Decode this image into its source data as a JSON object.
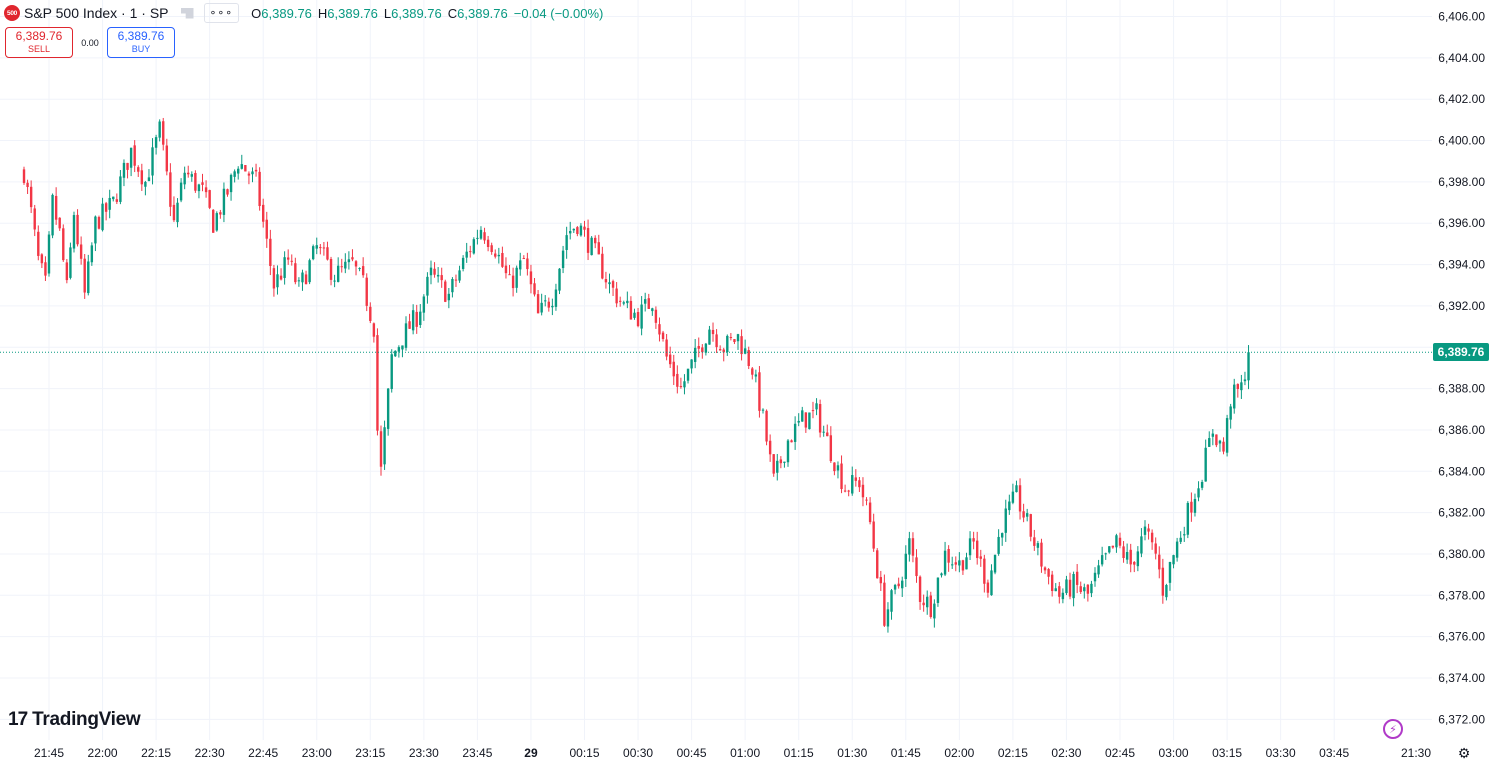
{
  "legend": {
    "badge": "500",
    "symbol": "S&P 500 Index · 1 · SP",
    "more": "∘∘∘",
    "o_label": "O",
    "o_value": "6,389.76",
    "h_label": "H",
    "h_value": "6,389.76",
    "l_label": "L",
    "l_value": "6,389.76",
    "c_label": "C",
    "c_value": "6,389.76",
    "change": "−0.04 (−0.00%)"
  },
  "trade": {
    "sell_price": "6,389.76",
    "sell_label": "SELL",
    "spread": "0.00",
    "buy_price": "6,389.76",
    "buy_label": "BUY"
  },
  "last_price_tag": "6,389.76",
  "brand": {
    "mark": "17",
    "name": "TradingView"
  },
  "icons": {
    "bolt": "bolt-icon",
    "settings": "gear-icon"
  },
  "colors": {
    "up": "#089981",
    "down": "#f23645",
    "grid": "#f0f3fa",
    "axis_text": "#131722"
  },
  "chart_data": {
    "type": "candlestick",
    "title": "S&P 500 Index · 1 · SP",
    "interval": "1 minute",
    "ylim": [
      6371,
      6406.8
    ],
    "y_ticks": [
      "6,372.00",
      "6,374.00",
      "6,376.00",
      "6,378.00",
      "6,380.00",
      "6,382.00",
      "6,384.00",
      "6,386.00",
      "6,388.00",
      "6,390.00",
      "6,392.00",
      "6,394.00",
      "6,396.00",
      "6,398.00",
      "6,400.00",
      "6,402.00",
      "6,404.00",
      "6,406.00"
    ],
    "x_ticks": [
      "21:45",
      "22:00",
      "22:15",
      "22:30",
      "22:45",
      "23:00",
      "23:15",
      "23:30",
      "23:45",
      "29",
      "00:15",
      "00:30",
      "00:45",
      "01:00",
      "01:15",
      "01:30",
      "01:45",
      "02:00",
      "02:15",
      "02:30",
      "02:45",
      "03:00",
      "03:15",
      "03:30",
      "03:45",
      "21:30"
    ],
    "last_price": 6389.76,
    "anchors": [
      [
        "21:38",
        6398.5
      ],
      [
        "21:40",
        6396.5
      ],
      [
        "21:42",
        6394.2
      ],
      [
        "21:44",
        6393.0
      ],
      [
        "21:46",
        6397.0
      ],
      [
        "21:48",
        6395.5
      ],
      [
        "21:50",
        6392.8
      ],
      [
        "21:52",
        6396.5
      ],
      [
        "21:55",
        6392.5
      ],
      [
        "21:58",
        6396.0
      ],
      [
        "22:03",
        6397.0
      ],
      [
        "22:08",
        6399.5
      ],
      [
        "22:12",
        6398.0
      ],
      [
        "22:16",
        6400.5
      ],
      [
        "22:20",
        6396.0
      ],
      [
        "22:23",
        6398.5
      ],
      [
        "22:28",
        6397.5
      ],
      [
        "22:31",
        6396.0
      ],
      [
        "22:35",
        6397.5
      ],
      [
        "22:38",
        6399.0
      ],
      [
        "22:43",
        6398.0
      ],
      [
        "22:48",
        6393.0
      ],
      [
        "22:52",
        6394.2
      ],
      [
        "22:55",
        6392.8
      ],
      [
        "23:00",
        6394.8
      ],
      [
        "23:05",
        6393.5
      ],
      [
        "23:10",
        6394.0
      ],
      [
        "23:13",
        6393.0
      ],
      [
        "23:16",
        6391.0
      ],
      [
        "23:17",
        6386.0
      ],
      [
        "23:18",
        6384.0
      ],
      [
        "23:21",
        6389.5
      ],
      [
        "23:24",
        6390.5
      ],
      [
        "23:28",
        6391.5
      ],
      [
        "23:32",
        6393.5
      ],
      [
        "23:37",
        6392.5
      ],
      [
        "23:42",
        6394.5
      ],
      [
        "23:46",
        6395.8
      ],
      [
        "23:50",
        6394.8
      ],
      [
        "23:54",
        6393.0
      ],
      [
        "23:58",
        6394.2
      ],
      [
        "00:02",
        6391.5
      ],
      [
        "00:06",
        6392.5
      ],
      [
        "00:10",
        6395.5
      ],
      [
        "00:13",
        6396.0
      ],
      [
        "00:18",
        6394.5
      ],
      [
        "00:22",
        6393.0
      ],
      [
        "00:26",
        6392.0
      ],
      [
        "00:30",
        6391.5
      ],
      [
        "00:34",
        6392.3
      ],
      [
        "00:38",
        6389.5
      ],
      [
        "00:42",
        6388.0
      ],
      [
        "00:46",
        6389.5
      ],
      [
        "00:50",
        6391.0
      ],
      [
        "00:54",
        6390.0
      ],
      [
        "00:58",
        6390.5
      ],
      [
        "01:02",
        6389.0
      ],
      [
        "01:05",
        6386.5
      ],
      [
        "01:08",
        6383.5
      ],
      [
        "01:12",
        6385.5
      ],
      [
        "01:16",
        6386.5
      ],
      [
        "01:20",
        6386.8
      ],
      [
        "01:24",
        6385.0
      ],
      [
        "01:28",
        6383.2
      ],
      [
        "01:32",
        6383.5
      ],
      [
        "01:35",
        6381.5
      ],
      [
        "01:39",
        6377.0
      ],
      [
        "01:43",
        6378.5
      ],
      [
        "01:46",
        6380.5
      ],
      [
        "01:49",
        6378.0
      ],
      [
        "01:52",
        6377.5
      ],
      [
        "01:56",
        6380.0
      ],
      [
        "02:00",
        6379.5
      ],
      [
        "02:04",
        6380.5
      ],
      [
        "02:08",
        6378.5
      ],
      [
        "02:12",
        6381.5
      ],
      [
        "02:16",
        6382.8
      ],
      [
        "02:20",
        6381.0
      ],
      [
        "02:24",
        6379.2
      ],
      [
        "02:28",
        6378.0
      ],
      [
        "02:32",
        6378.5
      ],
      [
        "02:36",
        6378.0
      ],
      [
        "02:40",
        6379.5
      ],
      [
        "02:44",
        6380.5
      ],
      [
        "02:48",
        6379.5
      ],
      [
        "02:52",
        6381.0
      ],
      [
        "02:55",
        6380.0
      ],
      [
        "02:57",
        6378.3
      ],
      [
        "03:01",
        6380.5
      ],
      [
        "03:04",
        6382.0
      ],
      [
        "03:08",
        6384.0
      ],
      [
        "03:11",
        6386.0
      ],
      [
        "03:14",
        6385.0
      ],
      [
        "03:16",
        6387.5
      ],
      [
        "03:19",
        6388.0
      ],
      [
        "03:21",
        6389.76
      ]
    ]
  }
}
